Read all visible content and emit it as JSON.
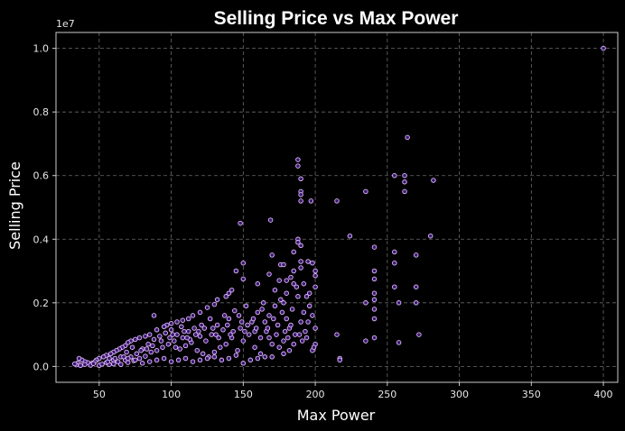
{
  "chart_data": {
    "type": "scatter",
    "title": "Selling Price vs Max Power",
    "xlabel": "Max Power",
    "ylabel": "Selling Price",
    "y_offset_label": "1e7",
    "xlim": [
      20,
      410
    ],
    "ylim": [
      -500000,
      10500000
    ],
    "xticks": [
      50,
      100,
      150,
      200,
      250,
      300,
      350,
      400
    ],
    "xtick_labels": [
      "50",
      "100",
      "150",
      "200",
      "250",
      "300",
      "350",
      "400"
    ],
    "yticks": [
      0,
      2000000,
      4000000,
      6000000,
      8000000,
      10000000
    ],
    "ytick_labels": [
      "0.0",
      "0.2",
      "0.4",
      "0.6",
      "0.8",
      "1.0"
    ],
    "grid": true,
    "marker_fill": "#3a1a6e",
    "marker_edge": "#e0b8ff",
    "background": "#000000",
    "points": [
      [
        400,
        10000000
      ],
      [
        264,
        7200000
      ],
      [
        282,
        5850000
      ],
      [
        255,
        6000000
      ],
      [
        262,
        6000000
      ],
      [
        262,
        5800000
      ],
      [
        262,
        5500000
      ],
      [
        188,
        6500000
      ],
      [
        188,
        6300000
      ],
      [
        190,
        5900000
      ],
      [
        190,
        5500000
      ],
      [
        190,
        5400000
      ],
      [
        190,
        5200000
      ],
      [
        197,
        5200000
      ],
      [
        215,
        5200000
      ],
      [
        235,
        5500000
      ],
      [
        148,
        4500000
      ],
      [
        169,
        4600000
      ],
      [
        224,
        4100000
      ],
      [
        280,
        4100000
      ],
      [
        241,
        3750000
      ],
      [
        255,
        3600000
      ],
      [
        255,
        3250000
      ],
      [
        270,
        3500000
      ],
      [
        188,
        4000000
      ],
      [
        188,
        3900000
      ],
      [
        190,
        3800000
      ],
      [
        170,
        3500000
      ],
      [
        185,
        3600000
      ],
      [
        190,
        3300000
      ],
      [
        190,
        3100000
      ],
      [
        195,
        3300000
      ],
      [
        198,
        3250000
      ],
      [
        176,
        3200000
      ],
      [
        178,
        3200000
      ],
      [
        200,
        3000000
      ],
      [
        200,
        2850000
      ],
      [
        150,
        3250000
      ],
      [
        145,
        3000000
      ],
      [
        150,
        2750000
      ],
      [
        168,
        2900000
      ],
      [
        160,
        2600000
      ],
      [
        180,
        2700000
      ],
      [
        185,
        2600000
      ],
      [
        175,
        2700000
      ],
      [
        172,
        2400000
      ],
      [
        241,
        3000000
      ],
      [
        241,
        2750000
      ],
      [
        255,
        2500000
      ],
      [
        258,
        2000000
      ],
      [
        270,
        2500000
      ],
      [
        270,
        2000000
      ],
      [
        241,
        2300000
      ],
      [
        241,
        2100000
      ],
      [
        241,
        1800000
      ],
      [
        235,
        2000000
      ],
      [
        142,
        2400000
      ],
      [
        140,
        2300000
      ],
      [
        138,
        2200000
      ],
      [
        132,
        2100000
      ],
      [
        130,
        1950000
      ],
      [
        125,
        1850000
      ],
      [
        120,
        1700000
      ],
      [
        115,
        1600000
      ],
      [
        112,
        1500000
      ],
      [
        108,
        1450000
      ],
      [
        104,
        1400000
      ],
      [
        100,
        1350000
      ],
      [
        97,
        1300000
      ],
      [
        95,
        1250000
      ],
      [
        88,
        1600000
      ],
      [
        90,
        1150000
      ],
      [
        85,
        1000000
      ],
      [
        82,
        950000
      ],
      [
        78,
        900000
      ],
      [
        75,
        850000
      ],
      [
        72,
        800000
      ],
      [
        70,
        750000
      ],
      [
        68,
        650000
      ],
      [
        66,
        600000
      ],
      [
        64,
        550000
      ],
      [
        62,
        500000
      ],
      [
        60,
        450000
      ],
      [
        58,
        400000
      ],
      [
        55,
        350000
      ],
      [
        53,
        300000
      ],
      [
        50,
        250000
      ],
      [
        48,
        200000
      ],
      [
        47,
        150000
      ],
      [
        45,
        100000
      ],
      [
        42,
        120000
      ],
      [
        40,
        150000
      ],
      [
        38,
        200000
      ],
      [
        36,
        250000
      ],
      [
        35,
        100000
      ],
      [
        34,
        50000
      ],
      [
        33,
        80000
      ],
      [
        37,
        30000
      ],
      [
        40,
        60000
      ],
      [
        44,
        40000
      ],
      [
        46,
        90000
      ],
      [
        50,
        30000
      ],
      [
        52,
        70000
      ],
      [
        55,
        120000
      ],
      [
        57,
        60000
      ],
      [
        60,
        80000
      ],
      [
        63,
        150000
      ],
      [
        65,
        60000
      ],
      [
        68,
        200000
      ],
      [
        70,
        120000
      ],
      [
        72,
        300000
      ],
      [
        74,
        180000
      ],
      [
        76,
        400000
      ],
      [
        78,
        250000
      ],
      [
        80,
        550000
      ],
      [
        82,
        320000
      ],
      [
        84,
        700000
      ],
      [
        86,
        450000
      ],
      [
        88,
        850000
      ],
      [
        90,
        500000
      ],
      [
        92,
        950000
      ],
      [
        94,
        600000
      ],
      [
        96,
        1050000
      ],
      [
        98,
        700000
      ],
      [
        100,
        1150000
      ],
      [
        102,
        800000
      ],
      [
        104,
        1000000
      ],
      [
        106,
        550000
      ],
      [
        108,
        900000
      ],
      [
        110,
        650000
      ],
      [
        112,
        1100000
      ],
      [
        114,
        750000
      ],
      [
        116,
        1200000
      ],
      [
        118,
        500000
      ],
      [
        120,
        950000
      ],
      [
        122,
        400000
      ],
      [
        124,
        800000
      ],
      [
        126,
        300000
      ],
      [
        128,
        1000000
      ],
      [
        130,
        450000
      ],
      [
        132,
        1300000
      ],
      [
        134,
        600000
      ],
      [
        136,
        1150000
      ],
      [
        138,
        700000
      ],
      [
        140,
        1500000
      ],
      [
        142,
        900000
      ],
      [
        144,
        1750000
      ],
      [
        146,
        500000
      ],
      [
        148,
        1200000
      ],
      [
        150,
        800000
      ],
      [
        152,
        1900000
      ],
      [
        154,
        1000000
      ],
      [
        156,
        1400000
      ],
      [
        158,
        600000
      ],
      [
        160,
        1700000
      ],
      [
        162,
        900000
      ],
      [
        164,
        2000000
      ],
      [
        166,
        1100000
      ],
      [
        168,
        1600000
      ],
      [
        170,
        700000
      ],
      [
        172,
        1900000
      ],
      [
        174,
        1300000
      ],
      [
        176,
        2100000
      ],
      [
        178,
        800000
      ],
      [
        180,
        1500000
      ],
      [
        182,
        1200000
      ],
      [
        184,
        1800000
      ],
      [
        186,
        1000000
      ],
      [
        188,
        2200000
      ],
      [
        190,
        1400000
      ],
      [
        192,
        1700000
      ],
      [
        194,
        900000
      ],
      [
        196,
        2300000
      ],
      [
        198,
        500000
      ],
      [
        200,
        1200000
      ],
      [
        200,
        700000
      ],
      [
        198,
        1600000
      ],
      [
        215,
        1000000
      ],
      [
        217,
        250000
      ],
      [
        217,
        200000
      ],
      [
        235,
        800000
      ],
      [
        241,
        900000
      ],
      [
        241,
        1500000
      ],
      [
        258,
        750000
      ],
      [
        272,
        1000000
      ],
      [
        165,
        300000
      ],
      [
        160,
        250000
      ],
      [
        155,
        200000
      ],
      [
        150,
        100000
      ],
      [
        145,
        350000
      ],
      [
        140,
        250000
      ],
      [
        135,
        200000
      ],
      [
        130,
        300000
      ],
      [
        125,
        250000
      ],
      [
        120,
        200000
      ],
      [
        115,
        150000
      ],
      [
        110,
        250000
      ],
      [
        105,
        200000
      ],
      [
        100,
        150000
      ],
      [
        95,
        250000
      ],
      [
        90,
        200000
      ],
      [
        85,
        150000
      ],
      [
        80,
        100000
      ],
      [
        75,
        200000
      ],
      [
        70,
        250000
      ],
      [
        65,
        300000
      ],
      [
        60,
        200000
      ],
      [
        56,
        150000
      ],
      [
        175,
        600000
      ],
      [
        178,
        400000
      ],
      [
        182,
        500000
      ],
      [
        170,
        300000
      ],
      [
        168,
        900000
      ],
      [
        162,
        400000
      ],
      [
        158,
        1100000
      ],
      [
        153,
        1300000
      ],
      [
        147,
        1600000
      ],
      [
        143,
        1100000
      ],
      [
        137,
        1600000
      ],
      [
        133,
        900000
      ],
      [
        127,
        1500000
      ],
      [
        123,
        1200000
      ],
      [
        117,
        1000000
      ],
      [
        113,
        850000
      ],
      [
        107,
        1250000
      ],
      [
        103,
        600000
      ],
      [
        99,
        900000
      ],
      [
        93,
        800000
      ],
      [
        87,
        650000
      ],
      [
        83,
        550000
      ],
      [
        79,
        500000
      ],
      [
        73,
        600000
      ],
      [
        69,
        450000
      ],
      [
        67,
        300000
      ],
      [
        61,
        250000
      ],
      [
        57,
        250000
      ],
      [
        185,
        3000000
      ],
      [
        183,
        2800000
      ],
      [
        187,
        2500000
      ],
      [
        180,
        2300000
      ],
      [
        178,
        2000000
      ],
      [
        192,
        2600000
      ],
      [
        194,
        2200000
      ],
      [
        196,
        1900000
      ],
      [
        200,
        2500000
      ],
      [
        165,
        1400000
      ],
      [
        163,
        1800000
      ],
      [
        167,
        1200000
      ],
      [
        171,
        1500000
      ],
      [
        173,
        1000000
      ],
      [
        177,
        1700000
      ],
      [
        179,
        1100000
      ],
      [
        181,
        900000
      ],
      [
        183,
        1300000
      ],
      [
        185,
        700000
      ],
      [
        189,
        1000000
      ],
      [
        191,
        800000
      ],
      [
        193,
        1100000
      ],
      [
        195,
        1400000
      ],
      [
        199,
        600000
      ],
      [
        101,
        1000000
      ],
      [
        109,
        1100000
      ],
      [
        111,
        900000
      ],
      [
        119,
        1100000
      ],
      [
        121,
        1300000
      ],
      [
        129,
        1200000
      ],
      [
        131,
        1000000
      ],
      [
        139,
        1300000
      ],
      [
        141,
        1000000
      ],
      [
        149,
        1400000
      ],
      [
        151,
        1100000
      ],
      [
        157,
        1500000
      ],
      [
        159,
        1200000
      ]
    ]
  }
}
